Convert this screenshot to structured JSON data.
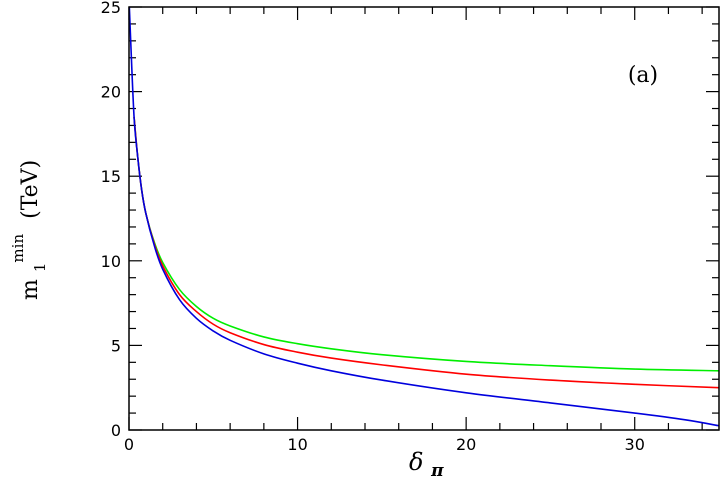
{
  "chart_data": {
    "type": "line",
    "panel_label": "(a)",
    "xlabel": {
      "main": "δ",
      "subscript": "π"
    },
    "ylabel": {
      "main": "m",
      "subscript": "1",
      "superscript": "min",
      "unit": "(TeV)"
    },
    "xlim": [
      0,
      35
    ],
    "ylim": [
      0,
      25
    ],
    "xticks": [
      0,
      10,
      20,
      30
    ],
    "xtick_labels": [
      "0",
      "10",
      "20",
      "30"
    ],
    "yticks": [
      0,
      5,
      10,
      15,
      20,
      25
    ],
    "ytick_labels": [
      "0",
      "5",
      "10",
      "15",
      "20",
      "25"
    ],
    "grid": false,
    "series": [
      {
        "color": "#00ee00",
        "x": [
          0.3,
          0.5,
          0.75,
          1,
          1.5,
          2,
          3,
          4,
          5,
          6,
          8,
          10,
          12,
          15,
          20,
          25,
          30,
          35
        ],
        "y": [
          18.5,
          16.3,
          14.2,
          12.8,
          11.1,
          9.9,
          8.3,
          7.3,
          6.6,
          6.15,
          5.5,
          5.1,
          4.8,
          4.45,
          4.05,
          3.8,
          3.6,
          3.5
        ]
      },
      {
        "color": "#ff0000",
        "x": [
          0.3,
          0.5,
          0.75,
          1,
          1.5,
          2,
          3,
          4,
          5,
          6,
          8,
          10,
          12,
          15,
          20,
          25,
          30,
          35
        ],
        "y": [
          18.5,
          16.3,
          14.2,
          12.8,
          11.0,
          9.7,
          8.0,
          7.0,
          6.25,
          5.75,
          5.05,
          4.6,
          4.25,
          3.85,
          3.3,
          2.95,
          2.7,
          2.5
        ]
      },
      {
        "color": "#0000dd",
        "x": [
          0.02,
          0.1,
          0.3,
          0.5,
          0.75,
          1,
          1.5,
          2,
          3,
          4,
          5,
          6,
          8,
          10,
          12,
          15,
          20,
          25,
          30,
          33,
          35
        ],
        "y": [
          25,
          23.0,
          18.5,
          16.3,
          14.2,
          12.8,
          10.9,
          9.5,
          7.7,
          6.6,
          5.85,
          5.3,
          4.5,
          3.95,
          3.5,
          2.95,
          2.2,
          1.6,
          1.0,
          0.6,
          0.25
        ]
      }
    ]
  }
}
